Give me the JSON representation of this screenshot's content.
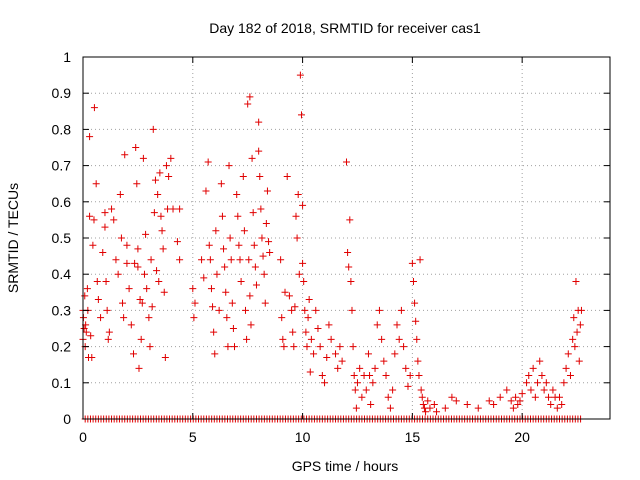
{
  "chart_data": {
    "type": "scatter",
    "title": "Day 182 of 2018, SRMTID for receiver cas1",
    "xlabel": "GPS time / hours",
    "ylabel": "SRMTID / TECUs",
    "xlim": [
      0,
      24
    ],
    "ylim": [
      0,
      1
    ],
    "xticks": [
      0,
      5,
      10,
      15,
      20
    ],
    "yticks": [
      0,
      0.1,
      0.2,
      0.3,
      0.4,
      0.5,
      0.6,
      0.7,
      0.8,
      0.9,
      1
    ],
    "ytick_labels": [
      "0",
      "0.1",
      "0.2",
      "0.3",
      "0.4",
      "0.5",
      "0.6",
      "0.7",
      "0.8",
      "0.9",
      "1"
    ],
    "grid": true,
    "marker": "+",
    "marker_color": "#e00000",
    "series": [
      {
        "name": "cas1 SRMTID",
        "points": [
          [
            0.0,
            0.3
          ],
          [
            0.0,
            0.22
          ],
          [
            0.02,
            0.28
          ],
          [
            0.05,
            0.25
          ],
          [
            0.08,
            0.34
          ],
          [
            0.1,
            0.2
          ],
          [
            0.12,
            0.26
          ],
          [
            0.15,
            0.24
          ],
          [
            0.2,
            0.36
          ],
          [
            0.22,
            0.3
          ],
          [
            0.25,
            0.17
          ],
          [
            0.3,
            0.78
          ],
          [
            0.3,
            0.56
          ],
          [
            0.35,
            0.23
          ],
          [
            0.4,
            0.17
          ],
          [
            0.45,
            0.48
          ],
          [
            0.5,
            0.55
          ],
          [
            0.52,
            0.86
          ],
          [
            0.6,
            0.65
          ],
          [
            0.65,
            0.38
          ],
          [
            0.7,
            0.33
          ],
          [
            0.8,
            0.28
          ],
          [
            0.9,
            0.46
          ],
          [
            1.0,
            0.57
          ],
          [
            1.0,
            0.53
          ],
          [
            1.05,
            0.38
          ],
          [
            1.1,
            0.3
          ],
          [
            1.15,
            0.22
          ],
          [
            1.2,
            0.24
          ],
          [
            1.3,
            0.58
          ],
          [
            1.4,
            0.55
          ],
          [
            1.5,
            0.44
          ],
          [
            1.6,
            0.4
          ],
          [
            1.7,
            0.62
          ],
          [
            1.75,
            0.5
          ],
          [
            1.8,
            0.32
          ],
          [
            1.85,
            0.28
          ],
          [
            1.9,
            0.73
          ],
          [
            2.0,
            0.48
          ],
          [
            2.0,
            0.43
          ],
          [
            2.1,
            0.36
          ],
          [
            2.2,
            0.26
          ],
          [
            2.3,
            0.18
          ],
          [
            2.35,
            0.43
          ],
          [
            2.4,
            0.75
          ],
          [
            2.45,
            0.65
          ],
          [
            2.5,
            0.47
          ],
          [
            2.5,
            0.42
          ],
          [
            2.55,
            0.14
          ],
          [
            2.6,
            0.33
          ],
          [
            2.65,
            0.22
          ],
          [
            2.7,
            0.32
          ],
          [
            2.75,
            0.72
          ],
          [
            2.8,
            0.4
          ],
          [
            2.85,
            0.51
          ],
          [
            2.9,
            0.36
          ],
          [
            3.0,
            0.28
          ],
          [
            3.05,
            0.2
          ],
          [
            3.1,
            0.44
          ],
          [
            3.15,
            0.31
          ],
          [
            3.2,
            0.8
          ],
          [
            3.25,
            0.57
          ],
          [
            3.3,
            0.66
          ],
          [
            3.35,
            0.41
          ],
          [
            3.4,
            0.62
          ],
          [
            3.45,
            0.38
          ],
          [
            3.5,
            0.68
          ],
          [
            3.55,
            0.56
          ],
          [
            3.6,
            0.52
          ],
          [
            3.65,
            0.47
          ],
          [
            3.7,
            0.35
          ],
          [
            3.75,
            0.17
          ],
          [
            3.8,
            0.7
          ],
          [
            3.85,
            0.58
          ],
          [
            3.9,
            0.67
          ],
          [
            4.0,
            0.72
          ],
          [
            4.1,
            0.58
          ],
          [
            4.3,
            0.49
          ],
          [
            4.4,
            0.44
          ],
          [
            4.4,
            0.58
          ],
          [
            5.0,
            0.36
          ],
          [
            5.05,
            0.28
          ],
          [
            5.1,
            0.32
          ],
          [
            5.4,
            0.44
          ],
          [
            5.5,
            0.39
          ],
          [
            5.6,
            0.63
          ],
          [
            5.7,
            0.71
          ],
          [
            5.75,
            0.48
          ],
          [
            5.8,
            0.44
          ],
          [
            5.85,
            0.36
          ],
          [
            5.9,
            0.31
          ],
          [
            5.95,
            0.24
          ],
          [
            6.0,
            0.18
          ],
          [
            6.05,
            0.52
          ],
          [
            6.1,
            0.4
          ],
          [
            6.2,
            0.3
          ],
          [
            6.3,
            0.65
          ],
          [
            6.35,
            0.56
          ],
          [
            6.4,
            0.47
          ],
          [
            6.45,
            0.42
          ],
          [
            6.5,
            0.35
          ],
          [
            6.55,
            0.28
          ],
          [
            6.6,
            0.2
          ],
          [
            6.65,
            0.7
          ],
          [
            6.7,
            0.5
          ],
          [
            6.75,
            0.44
          ],
          [
            6.8,
            0.32
          ],
          [
            6.85,
            0.25
          ],
          [
            6.9,
            0.2
          ],
          [
            7.0,
            0.62
          ],
          [
            7.05,
            0.56
          ],
          [
            7.1,
            0.48
          ],
          [
            7.15,
            0.44
          ],
          [
            7.2,
            0.38
          ],
          [
            7.3,
            0.67
          ],
          [
            7.35,
            0.52
          ],
          [
            7.4,
            0.3
          ],
          [
            7.45,
            0.22
          ],
          [
            7.5,
            0.87
          ],
          [
            7.55,
            0.44
          ],
          [
            7.6,
            0.89
          ],
          [
            7.6,
            0.34
          ],
          [
            7.65,
            0.26
          ],
          [
            7.7,
            0.72
          ],
          [
            7.75,
            0.57
          ],
          [
            7.8,
            0.48
          ],
          [
            7.85,
            0.42
          ],
          [
            7.9,
            0.37
          ],
          [
            8.0,
            0.82
          ],
          [
            8.0,
            0.74
          ],
          [
            8.05,
            0.67
          ],
          [
            8.1,
            0.58
          ],
          [
            8.15,
            0.5
          ],
          [
            8.2,
            0.45
          ],
          [
            8.25,
            0.4
          ],
          [
            8.3,
            0.32
          ],
          [
            8.35,
            0.54
          ],
          [
            8.4,
            0.63
          ],
          [
            8.45,
            0.49
          ],
          [
            8.5,
            0.46
          ],
          [
            9.0,
            0.44
          ],
          [
            9.05,
            0.28
          ],
          [
            9.1,
            0.22
          ],
          [
            9.15,
            0.2
          ],
          [
            9.2,
            0.35
          ],
          [
            9.3,
            0.67
          ],
          [
            9.4,
            0.34
          ],
          [
            9.5,
            0.3
          ],
          [
            9.55,
            0.24
          ],
          [
            9.6,
            0.2
          ],
          [
            9.65,
            0.31
          ],
          [
            9.7,
            0.56
          ],
          [
            9.75,
            0.5
          ],
          [
            9.8,
            0.62
          ],
          [
            9.85,
            0.4
          ],
          [
            9.9,
            0.95
          ],
          [
            9.95,
            0.84
          ],
          [
            10.0,
            0.59
          ],
          [
            10.0,
            0.43
          ],
          [
            10.05,
            0.38
          ],
          [
            10.1,
            0.3
          ],
          [
            10.15,
            0.24
          ],
          [
            10.2,
            0.2
          ],
          [
            10.25,
            0.28
          ],
          [
            10.3,
            0.33
          ],
          [
            10.35,
            0.13
          ],
          [
            10.4,
            0.22
          ],
          [
            10.5,
            0.18
          ],
          [
            10.6,
            0.3
          ],
          [
            10.7,
            0.25
          ],
          [
            10.8,
            0.2
          ],
          [
            10.9,
            0.12
          ],
          [
            11.0,
            0.1
          ],
          [
            11.1,
            0.17
          ],
          [
            11.2,
            0.26
          ],
          [
            11.3,
            0.22
          ],
          [
            11.5,
            0.18
          ],
          [
            11.6,
            0.14
          ],
          [
            11.7,
            0.2
          ],
          [
            11.8,
            0.16
          ],
          [
            12.0,
            0.71
          ],
          [
            12.05,
            0.46
          ],
          [
            12.1,
            0.42
          ],
          [
            12.15,
            0.55
          ],
          [
            12.2,
            0.38
          ],
          [
            12.25,
            0.3
          ],
          [
            12.3,
            0.2
          ],
          [
            12.35,
            0.12
          ],
          [
            12.4,
            0.08
          ],
          [
            12.45,
            0.03
          ],
          [
            12.5,
            0.1
          ],
          [
            12.6,
            0.14
          ],
          [
            12.7,
            0.06
          ],
          [
            12.8,
            0.12
          ],
          [
            12.9,
            0.08
          ],
          [
            13.0,
            0.18
          ],
          [
            13.05,
            0.12
          ],
          [
            13.1,
            0.04
          ],
          [
            13.2,
            0.1
          ],
          [
            13.3,
            0.14
          ],
          [
            13.4,
            0.26
          ],
          [
            13.5,
            0.3
          ],
          [
            13.6,
            0.22
          ],
          [
            13.7,
            0.16
          ],
          [
            13.8,
            0.12
          ],
          [
            13.9,
            0.06
          ],
          [
            14.0,
            0.03
          ],
          [
            14.1,
            0.08
          ],
          [
            14.2,
            0.18
          ],
          [
            14.3,
            0.26
          ],
          [
            14.4,
            0.22
          ],
          [
            14.5,
            0.3
          ],
          [
            14.6,
            0.2
          ],
          [
            14.7,
            0.14
          ],
          [
            14.8,
            0.09
          ],
          [
            14.9,
            0.12
          ],
          [
            15.0,
            0.43
          ],
          [
            15.05,
            0.38
          ],
          [
            15.1,
            0.32
          ],
          [
            15.15,
            0.27
          ],
          [
            15.2,
            0.22
          ],
          [
            15.25,
            0.16
          ],
          [
            15.3,
            0.12
          ],
          [
            15.35,
            0.44
          ],
          [
            15.4,
            0.08
          ],
          [
            15.45,
            0.06
          ],
          [
            15.5,
            0.04
          ],
          [
            15.55,
            0.03
          ],
          [
            15.6,
            0.02
          ],
          [
            15.7,
            0.05
          ],
          [
            15.8,
            0.03
          ],
          [
            16.0,
            0.04
          ],
          [
            16.1,
            0.02
          ],
          [
            16.5,
            0.03
          ],
          [
            16.8,
            0.06
          ],
          [
            17.0,
            0.05
          ],
          [
            17.5,
            0.04
          ],
          [
            18.0,
            0.03
          ],
          [
            18.5,
            0.05
          ],
          [
            18.7,
            0.04
          ],
          [
            19.0,
            0.06
          ],
          [
            19.3,
            0.08
          ],
          [
            19.5,
            0.05
          ],
          [
            19.6,
            0.03
          ],
          [
            19.7,
            0.06
          ],
          [
            19.8,
            0.04
          ],
          [
            19.9,
            0.05
          ],
          [
            20.0,
            0.07
          ],
          [
            20.2,
            0.1
          ],
          [
            20.3,
            0.12
          ],
          [
            20.4,
            0.08
          ],
          [
            20.5,
            0.14
          ],
          [
            20.6,
            0.06
          ],
          [
            20.7,
            0.1
          ],
          [
            20.8,
            0.16
          ],
          [
            20.9,
            0.12
          ],
          [
            21.0,
            0.08
          ],
          [
            21.1,
            0.1
          ],
          [
            21.2,
            0.06
          ],
          [
            21.3,
            0.04
          ],
          [
            21.4,
            0.08
          ],
          [
            21.5,
            0.06
          ],
          [
            21.6,
            0.03
          ],
          [
            21.7,
            0.06
          ],
          [
            21.8,
            0.04
          ],
          [
            21.9,
            0.1
          ],
          [
            22.0,
            0.14
          ],
          [
            22.1,
            0.18
          ],
          [
            22.2,
            0.12
          ],
          [
            22.3,
            0.22
          ],
          [
            22.35,
            0.28
          ],
          [
            22.4,
            0.2
          ],
          [
            22.45,
            0.38
          ],
          [
            22.5,
            0.24
          ],
          [
            22.55,
            0.3
          ],
          [
            22.6,
            0.16
          ],
          [
            22.65,
            0.26
          ],
          [
            22.7,
            0.3
          ]
        ]
      }
    ]
  }
}
